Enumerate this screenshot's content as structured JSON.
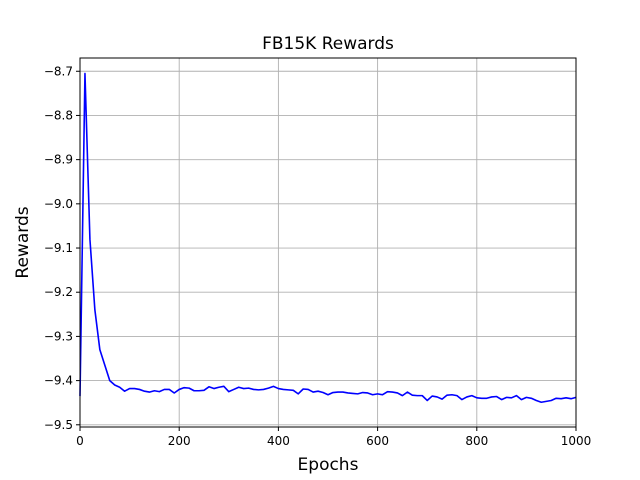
{
  "chart_data": {
    "type": "line",
    "title": "FB15K Rewards",
    "xlabel": "Epochs",
    "ylabel": "Rewards",
    "xlim": [
      0,
      1000
    ],
    "ylim": [
      -9.505,
      -8.67
    ],
    "xticks": [
      0,
      200,
      400,
      600,
      800,
      1000
    ],
    "yticks": [
      -9.5,
      -9.4,
      -9.3,
      -9.2,
      -9.1,
      -9.0,
      -8.9,
      -8.8,
      -8.7
    ],
    "grid": true,
    "series": [
      {
        "color": "#0000ff",
        "x": [
          0,
          10,
          20,
          30,
          40,
          50,
          60,
          70,
          80,
          90,
          100,
          110,
          120,
          130,
          140,
          150,
          160,
          170,
          180,
          190,
          200,
          210,
          220,
          230,
          240,
          250,
          260,
          270,
          280,
          290,
          300,
          310,
          320,
          330,
          340,
          350,
          360,
          370,
          380,
          390,
          400,
          410,
          420,
          430,
          440,
          450,
          460,
          470,
          480,
          490,
          500,
          510,
          520,
          530,
          540,
          550,
          560,
          570,
          580,
          590,
          600,
          610,
          620,
          630,
          640,
          650,
          660,
          670,
          680,
          690,
          700,
          710,
          720,
          730,
          740,
          750,
          760,
          770,
          780,
          790,
          800,
          810,
          820,
          830,
          840,
          850,
          860,
          870,
          880,
          890,
          900,
          910,
          920,
          930,
          940,
          950,
          960,
          970,
          980,
          990,
          1000
        ],
        "y": [
          -9.435,
          -8.705,
          -9.08,
          -9.24,
          -9.33,
          -9.365,
          -9.4,
          -9.41,
          -9.415,
          -9.424,
          -9.418,
          -9.418,
          -9.42,
          -9.424,
          -9.426,
          -9.423,
          -9.425,
          -9.42,
          -9.42,
          -9.428,
          -9.42,
          -9.416,
          -9.417,
          -9.423,
          -9.423,
          -9.422,
          -9.414,
          -9.418,
          -9.415,
          -9.413,
          -9.425,
          -9.42,
          -9.415,
          -9.418,
          -9.417,
          -9.42,
          -9.421,
          -9.42,
          -9.417,
          -9.413,
          -9.418,
          -9.42,
          -9.421,
          -9.422,
          -9.43,
          -9.419,
          -9.42,
          -9.426,
          -9.424,
          -9.427,
          -9.432,
          -9.427,
          -9.426,
          -9.426,
          -9.428,
          -9.429,
          -9.43,
          -9.427,
          -9.428,
          -9.432,
          -9.43,
          -9.432,
          -9.425,
          -9.426,
          -9.428,
          -9.434,
          -9.426,
          -9.433,
          -9.434,
          -9.434,
          -9.445,
          -9.435,
          -9.437,
          -9.442,
          -9.433,
          -9.432,
          -9.434,
          -9.443,
          -9.437,
          -9.434,
          -9.439,
          -9.44,
          -9.44,
          -9.437,
          -9.436,
          -9.443,
          -9.438,
          -9.439,
          -9.434,
          -9.443,
          -9.438,
          -9.44,
          -9.445,
          -9.449,
          -9.447,
          -9.445,
          -9.44,
          -9.441,
          -9.439,
          -9.441,
          -9.438
        ]
      }
    ]
  }
}
